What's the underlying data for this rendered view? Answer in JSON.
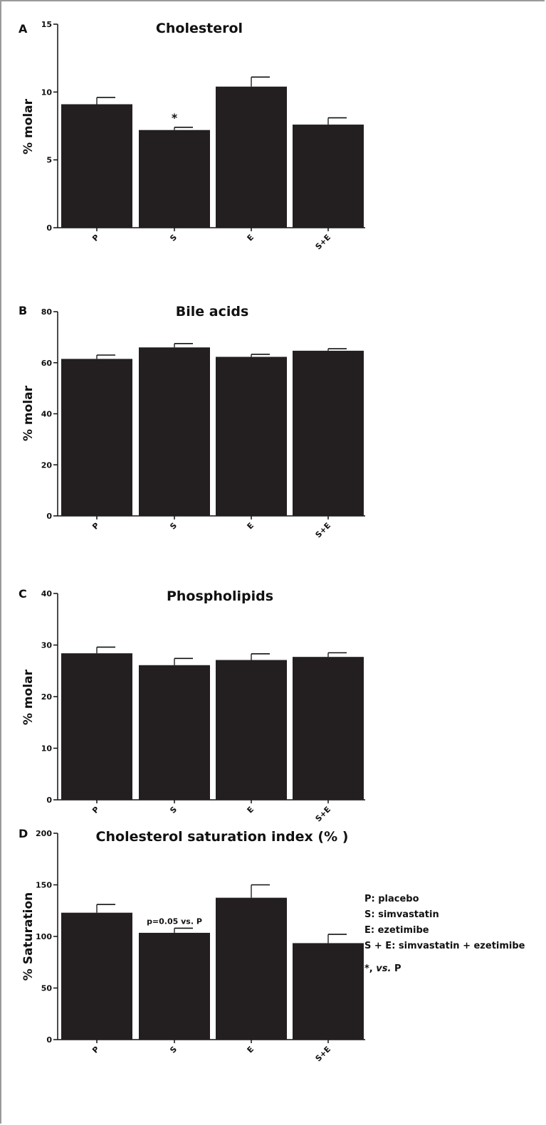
{
  "chart_data": [
    {
      "type": "bar",
      "panel_label": "A",
      "title": "Cholesterol",
      "ylabel": "% molar",
      "categories": [
        "P",
        "S",
        "E",
        "S+E"
      ],
      "values": [
        9.1,
        7.2,
        10.4,
        7.6
      ],
      "errors": [
        0.5,
        0.2,
        0.7,
        0.5
      ],
      "ylim": [
        0,
        15
      ],
      "yticks": [
        0,
        5,
        10,
        15
      ],
      "annotations": [
        {
          "category": "S",
          "text": "*"
        }
      ],
      "bar_color": "#231f20"
    },
    {
      "type": "bar",
      "panel_label": "B",
      "title": "Bile acids",
      "ylabel": "% molar",
      "categories": [
        "P",
        "S",
        "E",
        "S+E"
      ],
      "values": [
        61.5,
        66,
        62.3,
        64.7
      ],
      "errors": [
        1.5,
        1.5,
        1.0,
        0.8
      ],
      "ylim": [
        0,
        80
      ],
      "yticks": [
        0,
        20,
        40,
        60,
        80
      ],
      "annotations": [],
      "bar_color": "#231f20"
    },
    {
      "type": "bar",
      "panel_label": "C",
      "title": "Phospholipids",
      "ylabel": "% molar",
      "categories": [
        "P",
        "S",
        "E",
        "S+E"
      ],
      "values": [
        28.4,
        26.1,
        27.1,
        27.7
      ],
      "errors": [
        1.2,
        1.3,
        1.2,
        0.8
      ],
      "ylim": [
        0,
        40
      ],
      "yticks": [
        0,
        10,
        20,
        30,
        40
      ],
      "annotations": [],
      "bar_color": "#231f20"
    },
    {
      "type": "bar",
      "panel_label": "D",
      "title": "Cholesterol saturation index (% )",
      "ylabel": "% Saturation",
      "categories": [
        "P",
        "S",
        "E",
        "S+E"
      ],
      "values": [
        123,
        103.5,
        137.5,
        93.5
      ],
      "errors": [
        8,
        4.5,
        12.5,
        8.5
      ],
      "ylim": [
        0,
        200
      ],
      "yticks": [
        0,
        50,
        100,
        150,
        200
      ],
      "annotations": [
        {
          "category": "S",
          "text": "p=0.05 vs. P"
        }
      ],
      "bar_color": "#231f20"
    }
  ],
  "legend": {
    "items": [
      "P: placebo",
      "S: simvastatin",
      "E: ezetimibe",
      "S + E: simvastatin + ezetimibe"
    ],
    "note_prefix": "*, ",
    "note_italic": "vs.",
    "note_suffix": " P"
  }
}
